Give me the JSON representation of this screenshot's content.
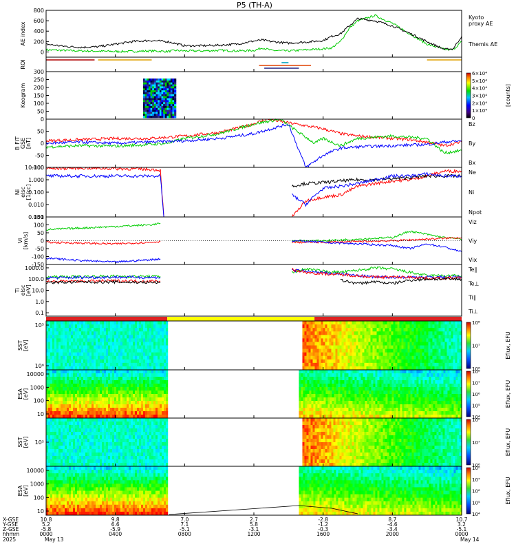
{
  "chart_data": {
    "type": "line",
    "title": "P5 (TH-A)",
    "panels": [
      {
        "id": "ae",
        "ylabel": "AE index",
        "ylim": [
          -100,
          800
        ],
        "yticks": [
          "0",
          "200",
          "400",
          "600",
          "800"
        ],
        "legend": [
          "Kyoto",
          "proxy AE",
          "Themis AE"
        ],
        "series": [
          {
            "name": "Kyoto proxy AE",
            "color": "#00cc00",
            "x": [
              0,
              1,
              2,
              3,
              4,
              5,
              6,
              7,
              7.5,
              8,
              9,
              10,
              11,
              12,
              12.5,
              13,
              14,
              15,
              16,
              16.5,
              17,
              17.5,
              18,
              19,
              20,
              21,
              22,
              23,
              23.5,
              24
            ],
            "y": [
              40,
              30,
              20,
              15,
              10,
              10,
              20,
              10,
              30,
              20,
              20,
              30,
              20,
              30,
              80,
              30,
              20,
              40,
              60,
              80,
              200,
              450,
              600,
              700,
              550,
              350,
              150,
              50,
              40,
              200
            ]
          },
          {
            "name": "Themis AE",
            "color": "#000000",
            "x": [
              0,
              1,
              2,
              3,
              4,
              5,
              6,
              7,
              8,
              9,
              10,
              11,
              12,
              12.5,
              13,
              14,
              15,
              16,
              16.5,
              17,
              17.5,
              18,
              19,
              20,
              21,
              22,
              23,
              23.5,
              24
            ],
            "y": [
              150,
              110,
              90,
              100,
              150,
              200,
              220,
              200,
              120,
              120,
              130,
              150,
              210,
              230,
              200,
              170,
              190,
              220,
              300,
              350,
              500,
              640,
              600,
              500,
              360,
              200,
              50,
              60,
              300
            ]
          }
        ]
      },
      {
        "id": "roi",
        "ylabel": "ROI",
        "segments": [
          {
            "color": "#b00000",
            "x0": 0,
            "x1": 2.8,
            "row": 0
          },
          {
            "color": "#e0a000",
            "x0": 3.0,
            "x1": 6.1,
            "row": 0
          },
          {
            "color": "#e0a000",
            "x0": 22.0,
            "x1": 24,
            "row": 0
          },
          {
            "color": "#e04000",
            "x0": 12.3,
            "x1": 15.3,
            "row": 2
          },
          {
            "color": "#202080",
            "x0": 12.6,
            "x1": 14.6,
            "row": 3
          },
          {
            "color": "#00a0c0",
            "x0": 13.6,
            "x1": 14.0,
            "row": 1
          }
        ]
      },
      {
        "id": "keogram",
        "ylabel": "Keogram",
        "ylim": [
          0,
          300
        ],
        "yticks": [
          "0",
          "50",
          "100",
          "150",
          "200",
          "250",
          "300"
        ],
        "cbar_label": "[counts]",
        "cbar_ticks": [
          "0",
          "1×10⁴",
          "2×10⁴",
          "3×10⁴",
          "4×10⁴",
          "5×10⁴",
          "6×10⁴"
        ],
        "image_x": [
          5.6,
          7.5
        ]
      },
      {
        "id": "bfield",
        "ylabel": "B FIT\nGSE\n[nT]",
        "ylim": [
          -100,
          100
        ],
        "yticks": [
          "-100",
          "-50",
          "0",
          "50"
        ],
        "legend": [
          "Bz",
          "By",
          "Bx"
        ],
        "series": [
          {
            "name": "Bz",
            "color": "#ff0000",
            "x": [
              0,
              2,
              4,
              6,
              8,
              10,
              11.5,
              12.8,
              16,
              17,
              18,
              20,
              21,
              21.5,
              22,
              23,
              24
            ],
            "y": [
              10,
              15,
              20,
              20,
              30,
              45,
              70,
              100,
              60,
              40,
              30,
              20,
              15,
              10,
              5,
              -10,
              5
            ]
          },
          {
            "name": "By",
            "color": "#00cc00",
            "x": [
              0,
              2,
              4,
              6,
              7,
              8,
              10,
              12,
              13.5,
              15.5,
              16,
              17,
              18,
              20,
              22,
              23,
              24
            ],
            "y": [
              -15,
              -10,
              -12,
              -5,
              0,
              20,
              40,
              80,
              100,
              0,
              20,
              -10,
              20,
              30,
              20,
              -40,
              -30
            ]
          },
          {
            "name": "Bx",
            "color": "#0000ff",
            "x": [
              0,
              2,
              4,
              6,
              8,
              10,
              12,
              14,
              15,
              16,
              17,
              18,
              20,
              22,
              23,
              24
            ],
            "y": [
              0,
              5,
              0,
              5,
              10,
              20,
              40,
              80,
              -100,
              -50,
              -20,
              -15,
              -10,
              -5,
              5,
              10
            ]
          }
        ]
      },
      {
        "id": "density",
        "ylabel": "Ni\nelsc\n[1/cc]",
        "log": true,
        "ylim": [
          0.001,
          10
        ],
        "yticks": [
          "0.001",
          "0.010",
          "0.100",
          "1.000",
          "10.000"
        ],
        "legend": [
          "Ne",
          "Ni",
          "Npot"
        ],
        "series": [
          {
            "name": "Ne",
            "color": "#ff0000",
            "x": [
              0,
              2,
              4,
              6,
              6.6,
              6.8
            ],
            "y": [
              8,
              9,
              8,
              7,
              6,
              0.001
            ]
          },
          {
            "name": "Npot",
            "color": "#0000ff",
            "x": [
              0,
              2,
              4,
              6,
              6.6,
              6.8
            ],
            "y": [
              2,
              2,
              2,
              2,
              2,
              0.001
            ]
          },
          {
            "name": "Ne",
            "color": "#ff0000",
            "x": [
              14.2,
              15,
              16,
              17,
              18,
              19,
              20,
              21,
              22,
              23,
              24
            ],
            "y": [
              0.001,
              0.02,
              0.04,
              0.06,
              0.3,
              0.5,
              0.8,
              1,
              2,
              5,
              5
            ]
          },
          {
            "name": "Ni",
            "color": "#000000",
            "x": [
              14.2,
              15,
              16,
              17,
              18,
              19,
              20,
              21,
              22,
              23,
              24
            ],
            "y": [
              0.3,
              0.5,
              0.6,
              0.8,
              1,
              1,
              1.2,
              1.5,
              2,
              2,
              2
            ]
          },
          {
            "name": "Npot",
            "color": "#0000ff",
            "x": [
              14.2,
              15,
              15.5,
              16,
              17,
              18,
              19,
              20,
              21,
              22,
              23,
              24
            ],
            "y": [
              0.06,
              0.01,
              0.05,
              0.2,
              0.3,
              0.5,
              1,
              2,
              2,
              3,
              2,
              2
            ]
          }
        ]
      },
      {
        "id": "velocity",
        "ylabel": "Vi\n[km/s]",
        "ylim": [
          -150,
          150
        ],
        "yticks": [
          "-150",
          "-100",
          "-50",
          "0",
          "50",
          "100",
          "150"
        ],
        "legend": [
          "Viz",
          "Viy",
          "Vix"
        ],
        "series": [
          {
            "name": "Viz",
            "color": "#00cc00",
            "x": [
              0,
              2,
              4,
              6,
              6.6
            ],
            "y": [
              70,
              80,
              90,
              100,
              110
            ]
          },
          {
            "name": "Viy",
            "color": "#ff0000",
            "x": [
              0,
              2,
              4,
              6,
              6.6
            ],
            "y": [
              -10,
              -15,
              -20,
              -10,
              -5
            ]
          },
          {
            "name": "Vix",
            "color": "#0000ff",
            "x": [
              0,
              2,
              4,
              6,
              6.6
            ],
            "y": [
              -110,
              -125,
              -135,
              -120,
              -115
            ]
          },
          {
            "name": "Viz",
            "color": "#00cc00",
            "x": [
              14.2,
              16,
              18,
              20,
              21,
              22,
              23,
              24
            ],
            "y": [
              0,
              0,
              10,
              20,
              60,
              40,
              20,
              10
            ]
          },
          {
            "name": "Viy",
            "color": "#ff0000",
            "x": [
              14.2,
              16,
              18,
              20,
              22,
              24
            ],
            "y": [
              -10,
              -10,
              -5,
              0,
              10,
              20
            ]
          },
          {
            "name": "Vix",
            "color": "#0000ff",
            "x": [
              14.2,
              16,
              18,
              20,
              21,
              22,
              23,
              24
            ],
            "y": [
              0,
              -10,
              -20,
              -30,
              -50,
              -20,
              -40,
              -70
            ]
          }
        ]
      },
      {
        "id": "temperature",
        "ylabel": "Ti\nelsc\n[eV]",
        "log": true,
        "ylim": [
          0.05,
          2000
        ],
        "yticks": [
          "0.1",
          "1.0",
          "10.0",
          "100.0",
          "1000.0"
        ],
        "legend": [
          "Te∥",
          "Te⊥",
          "Ti∥",
          "Ti⊥"
        ],
        "series": [
          {
            "name": "Ti",
            "color": "#00cc00",
            "x": [
              0,
              2,
              4,
              6,
              6.6
            ],
            "y": [
              150,
              170,
              180,
              170,
              170
            ]
          },
          {
            "name": "Te",
            "color": "#0000ff",
            "x": [
              0,
              2,
              4,
              6,
              6.6
            ],
            "y": [
              130,
              140,
              150,
              140,
              140
            ]
          },
          {
            "name": "Ti",
            "color": "#ff0000",
            "x": [
              0,
              2,
              4,
              6,
              6.6
            ],
            "y": [
              60,
              65,
              70,
              65,
              65
            ]
          },
          {
            "name": "Te",
            "color": "#000000",
            "x": [
              0,
              2,
              4,
              6,
              6.6
            ],
            "y": [
              50,
              55,
              55,
              50,
              50
            ]
          },
          {
            "name": "Ti",
            "color": "#00cc00",
            "x": [
              14.2,
              15,
              16,
              17,
              18,
              19,
              20,
              21,
              22,
              23,
              24
            ],
            "y": [
              400,
              800,
              500,
              400,
              600,
              1000,
              800,
              400,
              200,
              200,
              200
            ]
          },
          {
            "name": "Te",
            "color": "#0000ff",
            "x": [
              14.2,
              15,
              16,
              17,
              18,
              19,
              20,
              21,
              22,
              23,
              24
            ],
            "y": [
              600,
              500,
              350,
              300,
              200,
              150,
              150,
              150,
              150,
              150,
              150
            ]
          },
          {
            "name": "Ti",
            "color": "#ff0000",
            "x": [
              14.2,
              15,
              16,
              17,
              18,
              19,
              20,
              21,
              22,
              23,
              24
            ],
            "y": [
              700,
              400,
              300,
              250,
              200,
              150,
              150,
              150,
              120,
              120,
              130
            ]
          },
          {
            "name": "Te",
            "color": "#000000",
            "x": [
              17,
              18,
              19,
              20,
              21,
              22,
              23,
              24
            ],
            "y": [
              80,
              40,
              60,
              40,
              80,
              100,
              100,
              100
            ]
          }
        ]
      },
      {
        "id": "mode_bar",
        "segments": [
          {
            "color": "#dd2222",
            "x0": 0,
            "x1": 7.0
          },
          {
            "color": "#ffff00",
            "x0": 7.0,
            "x1": 15.5
          },
          {
            "color": "#dd2222",
            "x0": 15.5,
            "x1": 24
          }
        ]
      },
      {
        "id": "sst_e",
        "ylabel": "SST\n[eV]",
        "yticks": [
          "10⁶",
          "10⁵"
        ],
        "cbar_label": "Eflux, EFU",
        "cbar_ticks": [
          "10⁶",
          "10⁷",
          "10⁸"
        ],
        "data_ranges": [
          [
            0,
            7.0
          ],
          [
            14.8,
            24
          ]
        ]
      },
      {
        "id": "esa_e",
        "ylabel": "ESA\n[eV]",
        "yticks": [
          "10",
          "100",
          "1000",
          "10000"
        ],
        "cbar_label": "Eflux, EFU",
        "cbar_ticks": [
          "10⁴",
          "10⁵",
          "10⁶",
          "10⁷",
          "10⁸"
        ],
        "data_ranges": [
          [
            0,
            7.0
          ],
          [
            14.6,
            24
          ]
        ]
      },
      {
        "id": "sst_i",
        "ylabel": "SST\n[eV]",
        "yticks": [
          "10⁵"
        ],
        "cbar_label": "Eflux, EFU",
        "cbar_ticks": [
          "10⁶",
          "10⁷",
          "10⁸"
        ],
        "data_ranges": [
          [
            0,
            7.0
          ],
          [
            14.8,
            24
          ]
        ]
      },
      {
        "id": "esa_i",
        "ylabel": "ESA\n[eV]",
        "yticks": [
          "10",
          "100",
          "1000",
          "10000"
        ],
        "cbar_label": "Eflux, EFU",
        "cbar_ticks": [
          "10⁴",
          "10⁵",
          "10⁶",
          "10⁷",
          "10⁸"
        ],
        "data_ranges": [
          [
            0,
            7.0
          ],
          [
            14.6,
            24
          ]
        ]
      }
    ],
    "xaxis": {
      "xlim": [
        0,
        24
      ],
      "tick_x": [
        0,
        4,
        8,
        12,
        16,
        20,
        24
      ],
      "row_labels": [
        "X-GSE",
        "Y-GSE",
        "Z-GSE",
        "hhmm",
        "2025"
      ],
      "ticks": [
        [
          "10.8",
          "5.2",
          "-5.8",
          "0000",
          "May 13"
        ],
        [
          "9.8",
          "6.6",
          "-5.9",
          "0400",
          ""
        ],
        [
          "7.0",
          "7.1",
          "-5.1",
          "0800",
          ""
        ],
        [
          "2.7",
          "5.8",
          "-3.1",
          "1200",
          ""
        ],
        [
          "-2.8",
          "-1.2",
          "-0.3",
          "1600",
          ""
        ],
        [
          "8.7",
          "-4.6",
          "-3.4",
          "2000",
          ""
        ],
        [
          "10.7",
          "3.2",
          "-5.1",
          "0000",
          "May 14"
        ]
      ]
    }
  }
}
